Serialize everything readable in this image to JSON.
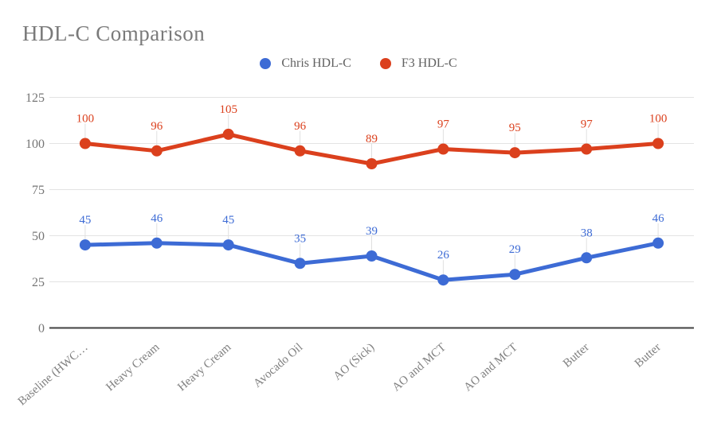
{
  "title": "HDL-C Comparison",
  "legend": [
    {
      "label": "Chris HDL-C",
      "color": "#3D6BD5"
    },
    {
      "label": "F3 HDL-C",
      "color": "#DB401D"
    }
  ],
  "colors": {
    "background": "#FFFFFF",
    "title_text": "#7A7A7A",
    "legend_text": "#616161",
    "gridline": "#E3E3E3",
    "axis_line": "#424242",
    "leader_line": "#E0E0E0",
    "y_tick_text": "#757575",
    "x_label_text": "#808080",
    "series_blue": "#3D6BD5",
    "series_red": "#DB401D"
  },
  "chart_data": {
    "type": "line",
    "title": "HDL-C Comparison",
    "categories": [
      "Baseline (HWC…",
      "Heavy Cream",
      "Heavy Cream",
      "Avocado Oil",
      "AO (Sick)",
      "AO and MCT",
      "AO and MCT",
      "Butter",
      "Butter"
    ],
    "series": [
      {
        "name": "Chris HDL-C",
        "color": "#3D6BD5",
        "values": [
          45,
          46,
          45,
          35,
          39,
          26,
          29,
          38,
          46
        ]
      },
      {
        "name": "F3 HDL-C",
        "color": "#DB401D",
        "values": [
          100,
          96,
          105,
          96,
          89,
          97,
          95,
          97,
          100
        ]
      }
    ],
    "xlabel": "",
    "ylabel": "",
    "ylim": [
      0,
      125
    ],
    "yticks": [
      0,
      25,
      50,
      75,
      100,
      125
    ],
    "grid": true,
    "data_labels": true,
    "legend_position": "top",
    "x_label_rotation_deg": 41
  }
}
